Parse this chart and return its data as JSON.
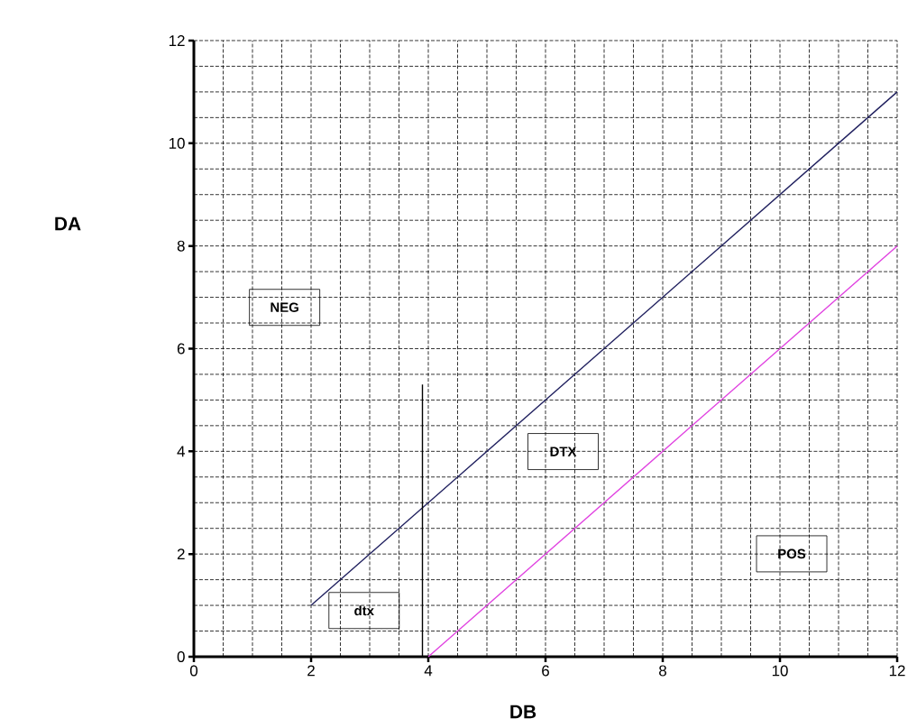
{
  "chart_data": {
    "type": "line",
    "xlabel": "DB",
    "ylabel": "DA",
    "xlim": [
      0,
      12
    ],
    "ylim": [
      0,
      12
    ],
    "xticks": [
      0,
      2,
      4,
      6,
      8,
      10,
      12
    ],
    "yticks": [
      0,
      2,
      4,
      6,
      8,
      10,
      12
    ],
    "grid": true,
    "marker": "none",
    "line_style": "solid",
    "series": [
      {
        "color": "#1f1f5e",
        "x": [
          2,
          12
        ],
        "values": [
          1,
          11
        ]
      },
      {
        "color": "#e040e0",
        "x": [
          4,
          12
        ],
        "values": [
          0,
          8
        ]
      },
      {
        "color": "#000000",
        "x": [
          3.9,
          3.9
        ],
        "values": [
          0,
          5.3
        ]
      }
    ],
    "annotations": [
      "NEG",
      "DTX",
      "POS",
      "dtx"
    ]
  }
}
